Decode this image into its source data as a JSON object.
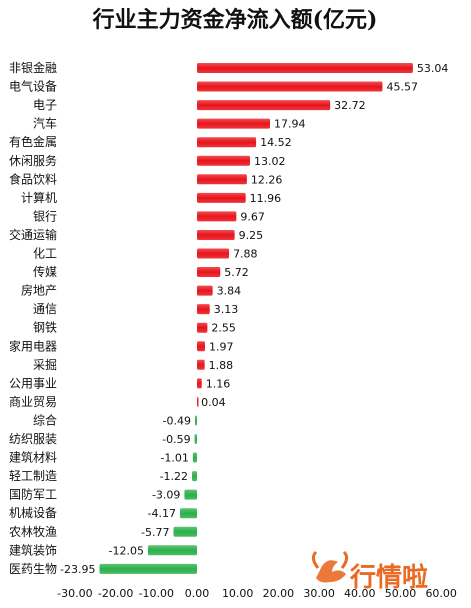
{
  "chart_data": {
    "type": "bar",
    "orientation": "horizontal",
    "title": "行业主力资金净流入额(亿元)",
    "categories": [
      "非银金融",
      "电气设备",
      "电子",
      "汽车",
      "有色金属",
      "休闲服务",
      "食品饮料",
      "计算机",
      "银行",
      "交通运输",
      "化工",
      "传媒",
      "房地产",
      "通信",
      "钢铁",
      "家用电器",
      "采掘",
      "公用事业",
      "商业贸易",
      "综合",
      "纺织服装",
      "建筑材料",
      "轻工制造",
      "国防军工",
      "机械设备",
      "农林牧渔",
      "建筑装饰",
      "医药生物"
    ],
    "values": [
      53.04,
      45.57,
      32.72,
      17.94,
      14.52,
      13.02,
      12.26,
      11.96,
      9.67,
      9.25,
      7.88,
      5.72,
      3.84,
      3.13,
      2.55,
      1.97,
      1.88,
      1.16,
      0.04,
      -0.49,
      -0.59,
      -1.01,
      -1.22,
      -3.09,
      -4.17,
      -5.77,
      -12.05,
      -23.95
    ],
    "value_labels": [
      "53.04",
      "45.57",
      "32.72",
      "17.94",
      "14.52",
      "13.02",
      "12.26",
      "11.96",
      "9.67",
      "9.25",
      "7.88",
      "5.72",
      "3.84",
      "3.13",
      "2.55",
      "1.97",
      "1.88",
      "1.16",
      "0.04",
      "-0.49",
      "-0.59",
      "-1.01",
      "-1.22",
      "-3.09",
      "-4.17",
      "-5.77",
      "-12.05",
      "-23.95"
    ],
    "x_ticks": [
      "-30.00",
      "-20.00",
      "-10.00",
      "0.00",
      "10.00",
      "20.00",
      "30.00",
      "40.00",
      "50.00",
      "60.00"
    ],
    "xlim": [
      -30,
      60
    ],
    "positive_color": "#e8141b",
    "negative_color": "#2bb04a",
    "grid": false,
    "legend": "none"
  },
  "watermark": {
    "text": "行情啦",
    "icon": "bull-logo-icon",
    "color": "#e96a24"
  }
}
